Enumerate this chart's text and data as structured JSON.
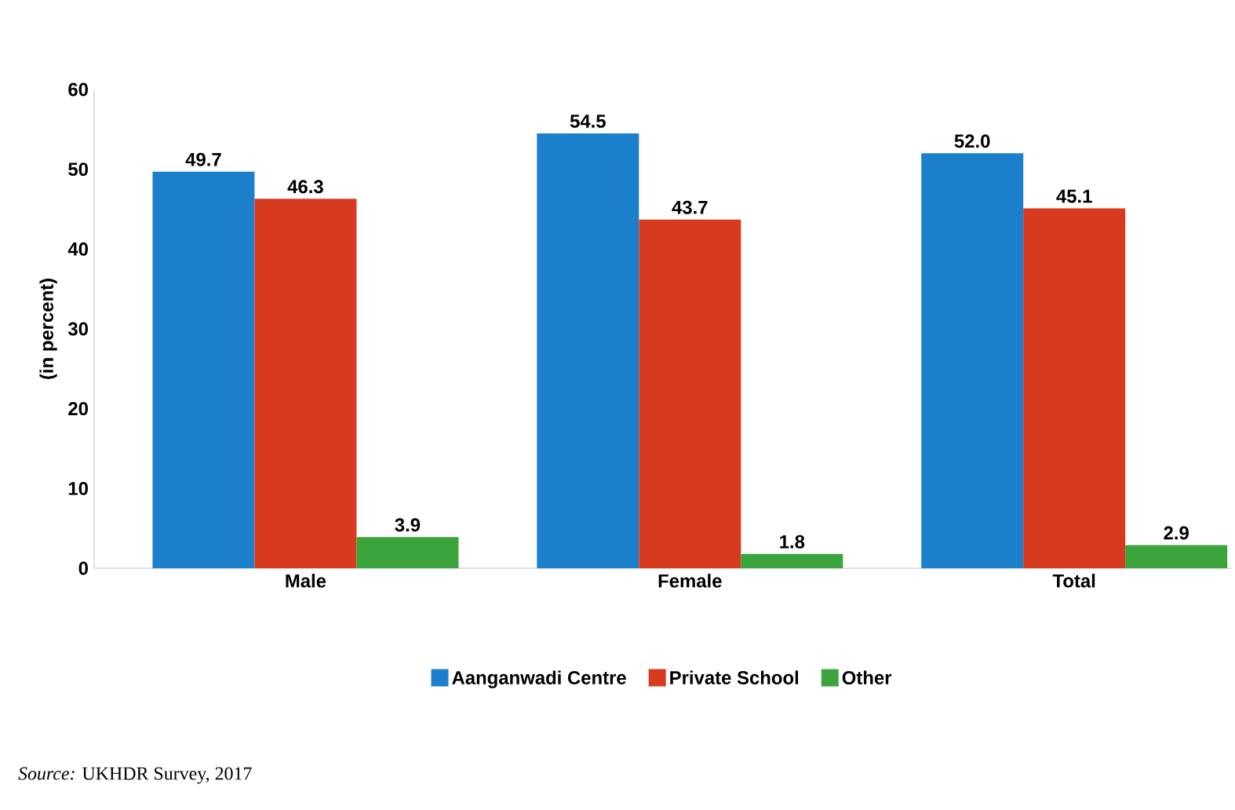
{
  "chart_data": {
    "type": "bar",
    "ylabel": "(in percent)",
    "categories": [
      "Male",
      "Female",
      "Total"
    ],
    "series": [
      {
        "name": "Aanganwadi Centre",
        "color": "#1b7fcc",
        "values": [
          49.7,
          54.5,
          52.0
        ],
        "value_labels": [
          "49.7",
          "54.5",
          "52.0"
        ]
      },
      {
        "name": "Private School",
        "color": "#d83a1f",
        "values": [
          46.3,
          43.7,
          45.1
        ],
        "value_labels": [
          "46.3",
          "43.7",
          "45.1"
        ]
      },
      {
        "name": "Other",
        "color": "#3ca43c",
        "values": [
          3.9,
          1.8,
          2.9
        ],
        "value_labels": [
          "3.9",
          "1.8",
          "2.9"
        ]
      }
    ],
    "ylim": [
      0,
      60
    ],
    "yticks": [
      0,
      10,
      20,
      30,
      40,
      50,
      60
    ],
    "grid": false,
    "legend": "bottom",
    "annotations": [
      "*Source:* UKHDR Survey, 2017"
    ]
  }
}
